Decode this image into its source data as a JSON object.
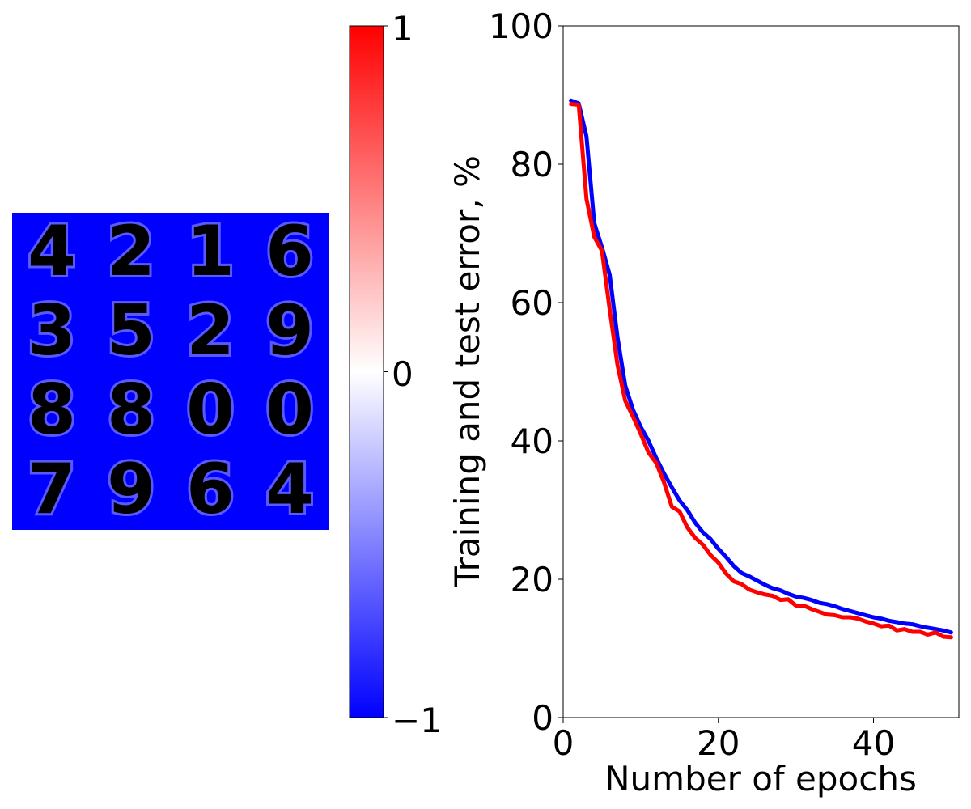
{
  "figure": {
    "digit_grid": {
      "rows": 4,
      "cols": 4,
      "digits": [
        [
          "4",
          "2",
          "1",
          "6"
        ],
        [
          "3",
          "5",
          "2",
          "9"
        ],
        [
          "8",
          "8",
          "0",
          "0"
        ],
        [
          "7",
          "9",
          "6",
          "4"
        ]
      ],
      "background_color": "#0000ff",
      "stroke_color": "#ff0000"
    },
    "colorbar": {
      "min": -1,
      "max": 1,
      "ticks": [
        {
          "value": 1,
          "label": "1"
        },
        {
          "value": 0,
          "label": "0"
        },
        {
          "value": -1,
          "label": "−1"
        }
      ],
      "colors": {
        "low": "#0000ff",
        "mid": "#ffffff",
        "high": "#ff0000"
      }
    }
  },
  "chart_data": {
    "type": "line",
    "title": "",
    "xlabel": "Number of epochs",
    "ylabel": "Training and test error, %",
    "xlim": [
      0,
      51
    ],
    "ylim": [
      0,
      100
    ],
    "xticks": [
      0,
      20,
      40
    ],
    "yticks": [
      0,
      20,
      40,
      60,
      80,
      100
    ],
    "grid": false,
    "x": [
      1,
      2,
      3,
      4,
      5,
      6,
      7,
      8,
      9,
      10,
      11,
      12,
      13,
      14,
      15,
      16,
      17,
      18,
      19,
      20,
      21,
      22,
      23,
      24,
      25,
      26,
      27,
      28,
      29,
      30,
      31,
      32,
      33,
      34,
      35,
      36,
      37,
      38,
      39,
      40,
      41,
      42,
      43,
      44,
      45,
      46,
      47,
      48,
      49,
      50
    ],
    "series": [
      {
        "color": "#0000ff",
        "values": [
          89.2,
          88.8,
          84.0,
          71.5,
          68.0,
          64.0,
          55.0,
          48.0,
          44.5,
          42.0,
          40.0,
          37.5,
          35.3,
          33.3,
          31.4,
          30.0,
          28.2,
          26.8,
          25.8,
          24.4,
          23.2,
          21.9,
          20.9,
          20.4,
          19.8,
          19.2,
          18.7,
          18.4,
          17.9,
          17.5,
          17.3,
          17.0,
          16.6,
          16.4,
          16.1,
          15.7,
          15.4,
          15.1,
          14.8,
          14.5,
          14.3,
          14.0,
          13.8,
          13.6,
          13.5,
          13.2,
          13.0,
          12.8,
          12.6,
          12.3
        ]
      },
      {
        "color": "#ff0000",
        "values": [
          88.7,
          88.6,
          75.0,
          69.5,
          67.5,
          59.0,
          51.0,
          45.8,
          43.5,
          41.0,
          38.3,
          36.8,
          34.0,
          30.5,
          29.8,
          27.5,
          26.0,
          25.0,
          23.5,
          22.4,
          20.8,
          19.7,
          19.3,
          18.5,
          18.1,
          17.8,
          17.6,
          17.0,
          17.1,
          16.2,
          16.2,
          15.7,
          15.3,
          14.9,
          14.8,
          14.5,
          14.5,
          14.3,
          13.9,
          13.6,
          13.2,
          13.3,
          12.6,
          12.8,
          12.4,
          12.4,
          12.0,
          12.3,
          11.7,
          11.6
        ]
      }
    ]
  }
}
